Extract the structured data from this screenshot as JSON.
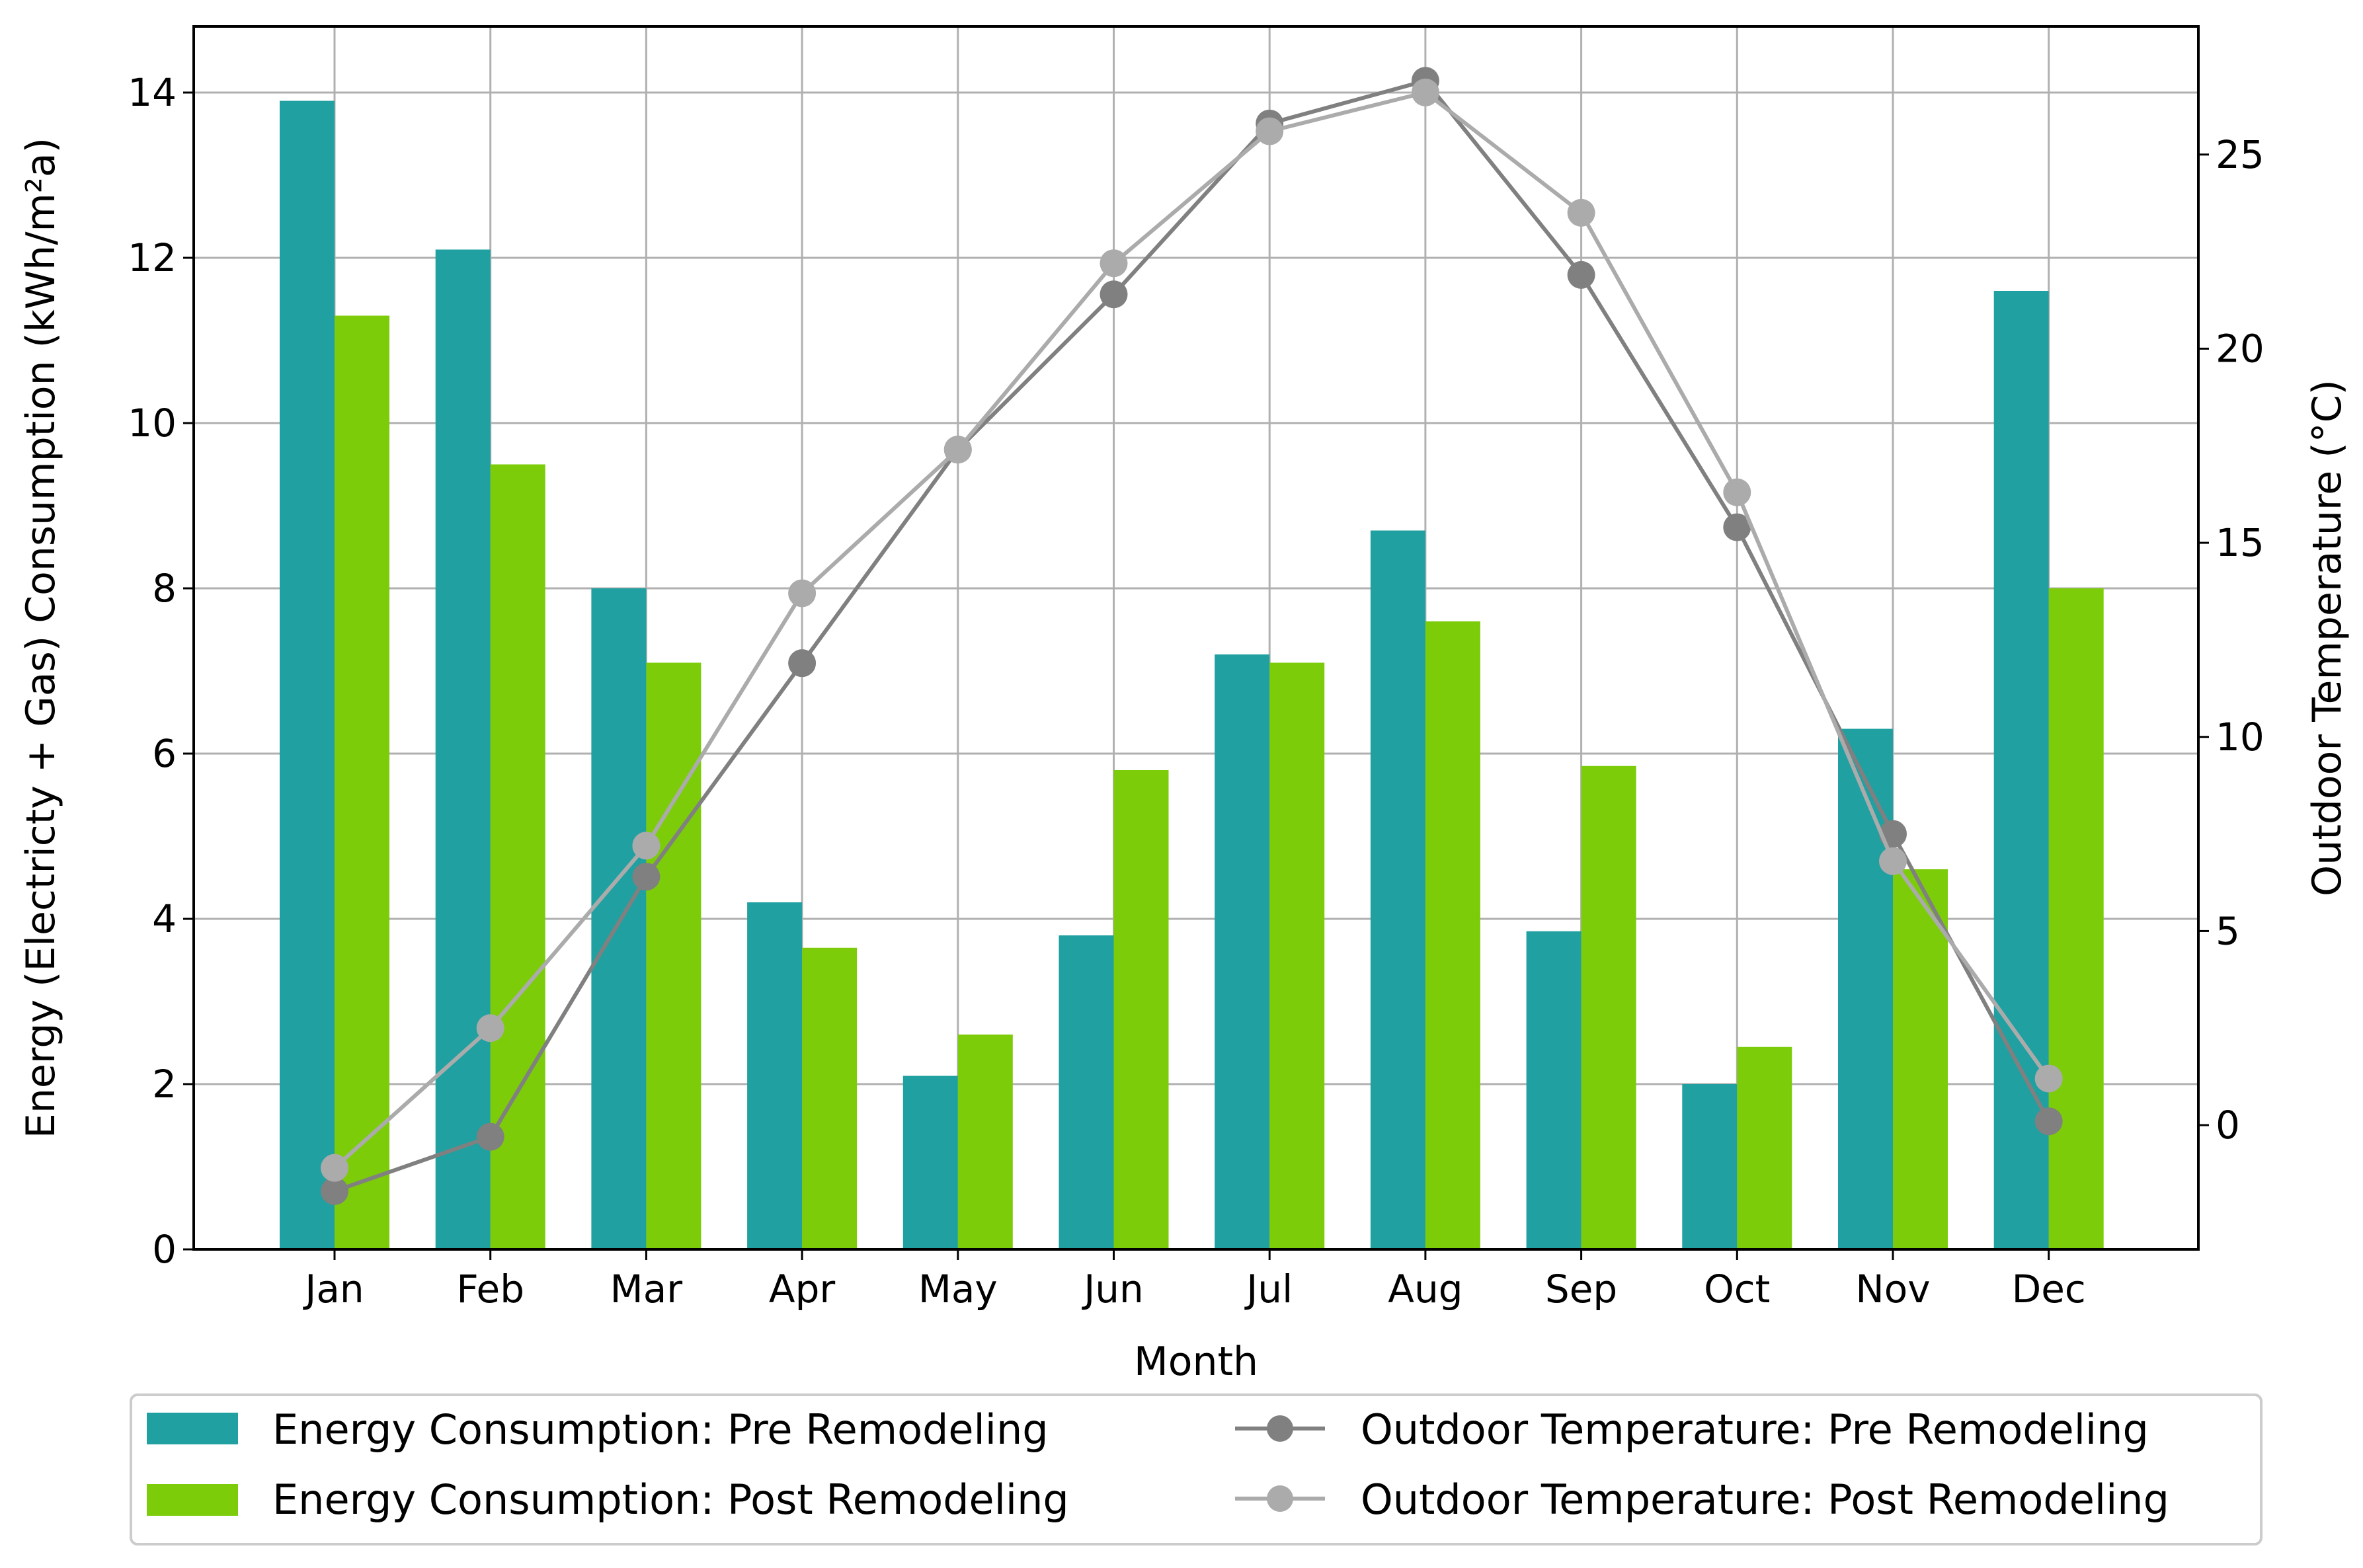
{
  "chart_data": {
    "type": "bar",
    "categories": [
      "Jan",
      "Feb",
      "Mar",
      "Apr",
      "May",
      "Jun",
      "Jul",
      "Aug",
      "Sep",
      "Oct",
      "Nov",
      "Dec"
    ],
    "xlabel": "Month",
    "ylabel": "Energy (Electricty + Gas) Consumption (kWh/m²a)",
    "y2label": "Outdoor Temperature (°C)",
    "ylim": [
      0,
      14.8
    ],
    "y2lim": [
      -3.2,
      28.3
    ],
    "yticks": [
      "0",
      "2",
      "4",
      "6",
      "8",
      "10",
      "12",
      "14"
    ],
    "y2ticks": [
      "0",
      "5",
      "10",
      "15",
      "20",
      "25"
    ],
    "grid": true,
    "legend_position": "bottom-outside",
    "series": [
      {
        "name": "Energy Consumption: Pre Remodeling",
        "type": "bar",
        "axis": "left",
        "color": "#20a0a0",
        "values": [
          13.9,
          12.1,
          8.0,
          4.2,
          2.1,
          3.8,
          7.2,
          8.7,
          3.85,
          2.0,
          6.3,
          11.6
        ]
      },
      {
        "name": "Energy Consumption: Post Remodeling",
        "type": "bar",
        "axis": "left",
        "color": "#7ccc0a",
        "values": [
          11.3,
          9.5,
          7.1,
          3.65,
          2.6,
          5.8,
          7.1,
          7.6,
          5.85,
          2.45,
          4.6,
          8.0
        ]
      },
      {
        "name": "Outdoor Temperature: Pre Remodeling",
        "type": "line",
        "axis": "right",
        "color": "#808080",
        "values": [
          -1.7,
          -0.3,
          6.4,
          11.9,
          17.4,
          21.4,
          25.8,
          26.9,
          21.9,
          15.4,
          7.5,
          0.1
        ]
      },
      {
        "name": "Outdoor Temperature: Post Remodeling",
        "type": "line",
        "axis": "right",
        "color": "#ababab",
        "values": [
          -1.1,
          2.5,
          7.2,
          13.7,
          17.4,
          22.2,
          25.6,
          26.6,
          23.5,
          16.3,
          6.8,
          1.2
        ]
      }
    ]
  }
}
